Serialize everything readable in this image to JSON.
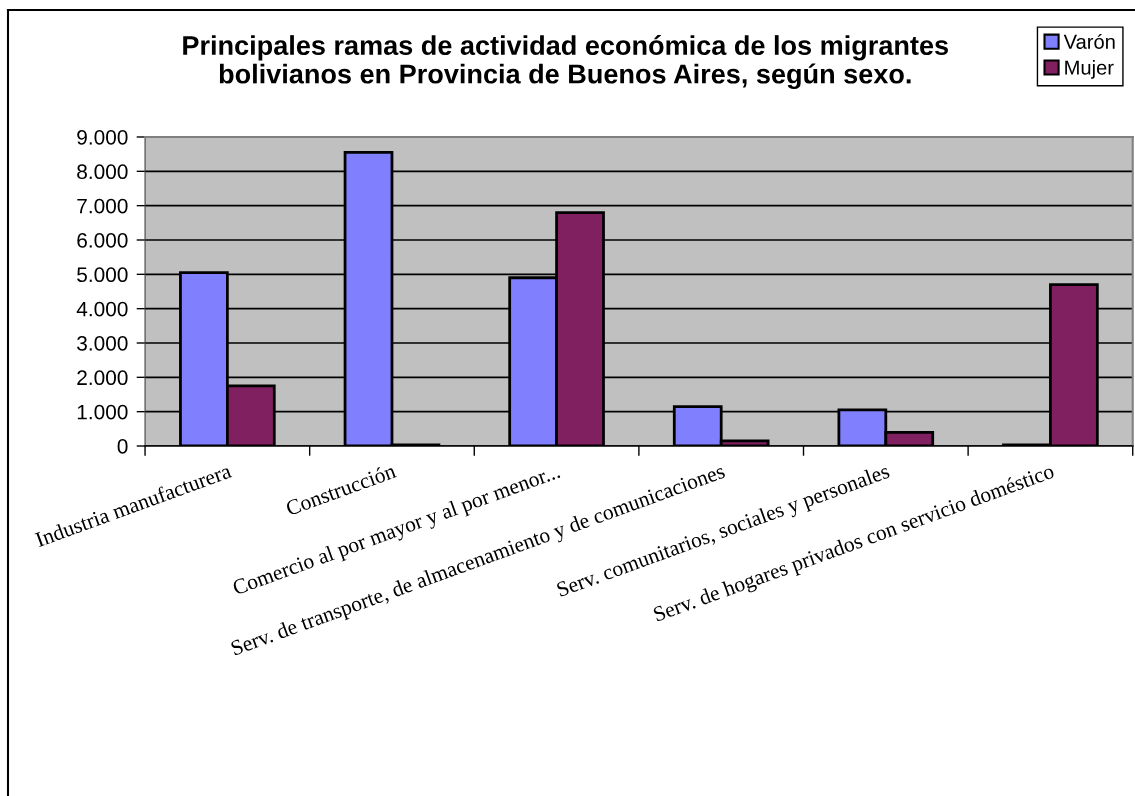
{
  "chart_data": {
    "type": "bar",
    "title": "Principales ramas de actividad económica de los migrantes\nbolivianos en Provincia de Buenos Aires, según sexo.",
    "categories": [
      "Industria manufacturera",
      "Construcción",
      "Comercio al por mayor y al por menor...",
      "Serv. de transporte, de almacenamiento y de comunicaciones",
      "Serv. comunitarios, sociales y personales",
      "Serv. de hogares privados con servicio doméstico"
    ],
    "series": [
      {
        "name": "Varón",
        "color": "#8080ff",
        "values": [
          5050,
          8550,
          4900,
          1150,
          1050,
          30
        ]
      },
      {
        "name": "Mujer",
        "color": "#802060",
        "values": [
          1750,
          30,
          6800,
          150,
          400,
          4700
        ]
      }
    ],
    "ylim": [
      0,
      9000
    ],
    "yticks": [
      0,
      {
        "value": 1000,
        "label": "1.000"
      },
      {
        "value": 2000,
        "label": "2.000"
      },
      {
        "value": 3000,
        "label": "3.000"
      },
      {
        "value": 4000,
        "label": "4.000"
      },
      {
        "value": 5000,
        "label": "5.000"
      },
      {
        "value": 6000,
        "label": "6.000"
      },
      {
        "value": 7000,
        "label": "7.000"
      },
      {
        "value": 8000,
        "label": "8.000"
      },
      {
        "value": 9000,
        "label": "9.000"
      }
    ],
    "grid": "y",
    "legend": "top right"
  }
}
